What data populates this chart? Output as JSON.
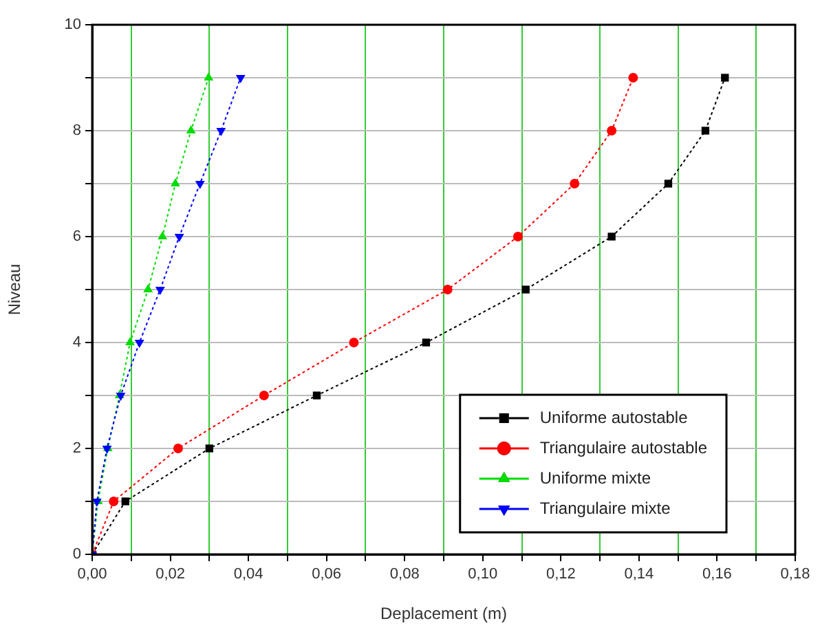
{
  "chart_data": {
    "type": "line",
    "xlabel": "Deplacement (m)",
    "ylabel": "Niveau",
    "xlim": [
      0,
      0.18
    ],
    "ylim": [
      0,
      10
    ],
    "xticks": [
      {
        "value": 0,
        "label": "0,00"
      },
      {
        "value": 0.01,
        "label": null
      },
      {
        "value": 0.02,
        "label": "0,02"
      },
      {
        "value": 0.03,
        "label": null
      },
      {
        "value": 0.04,
        "label": "0,04"
      },
      {
        "value": 0.05,
        "label": null
      },
      {
        "value": 0.06,
        "label": "0,06"
      },
      {
        "value": 0.07,
        "label": null
      },
      {
        "value": 0.08,
        "label": "0,08"
      },
      {
        "value": 0.09,
        "label": null
      },
      {
        "value": 0.1,
        "label": "0,10"
      },
      {
        "value": 0.11,
        "label": null
      },
      {
        "value": 0.12,
        "label": "0,12"
      },
      {
        "value": 0.13,
        "label": null
      },
      {
        "value": 0.14,
        "label": "0,14"
      },
      {
        "value": 0.15,
        "label": null
      },
      {
        "value": 0.16,
        "label": "0,16"
      },
      {
        "value": 0.17,
        "label": null
      },
      {
        "value": 0.18,
        "label": "0,18"
      }
    ],
    "yticks": [
      0,
      {
        "value": 1,
        "label": null
      },
      2,
      {
        "value": 3,
        "label": null
      },
      4,
      {
        "value": 5,
        "label": null
      },
      6,
      {
        "value": 7,
        "label": null
      },
      8,
      {
        "value": 9,
        "label": null
      },
      10
    ],
    "grid": true,
    "legend": "bottom right",
    "line_style": "dashed",
    "series": [
      {
        "name": "Uniforme autostable",
        "color": "#000000",
        "marker": "square",
        "x": [
          0,
          0.0085,
          0.03,
          0.0575,
          0.0855,
          0.111,
          0.133,
          0.1475,
          0.157,
          0.162
        ],
        "values": [
          0,
          1,
          2,
          3,
          4,
          5,
          6,
          7,
          8,
          9
        ]
      },
      {
        "name": "Triangulaire autostable",
        "color": "#ff0000",
        "marker": "circle",
        "x": [
          0,
          0.0055,
          0.022,
          0.044,
          0.067,
          0.091,
          0.109,
          0.1235,
          0.133,
          0.1385
        ],
        "values": [
          0,
          1,
          2,
          3,
          4,
          5,
          6,
          7,
          8,
          9
        ]
      },
      {
        "name": "Uniforme mixte",
        "color": "#00dd00",
        "marker": "triangle",
        "x": [
          0,
          0.0015,
          0.004,
          0.007,
          0.0097,
          0.0143,
          0.018,
          0.0213,
          0.0253,
          0.0298
        ],
        "values": [
          0,
          1,
          2,
          3,
          4,
          5,
          6,
          7,
          8,
          9
        ]
      },
      {
        "name": "Triangulaire mixte",
        "color": "#0000ff",
        "marker": "triangle-down",
        "x": [
          0,
          0.0012,
          0.0038,
          0.0073,
          0.0121,
          0.0174,
          0.0223,
          0.0276,
          0.033,
          0.038
        ],
        "values": [
          0,
          1,
          2,
          3,
          4,
          5,
          6,
          7,
          8,
          9
        ]
      }
    ]
  }
}
